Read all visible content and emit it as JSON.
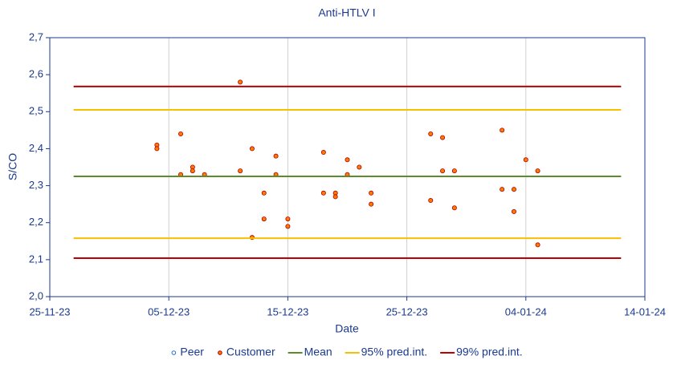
{
  "chart_data": {
    "type": "scatter",
    "title": "Anti-HTLV I",
    "xlabel": "Date",
    "ylabel": "S/CO",
    "xlim": [
      "2023-11-25",
      "2024-01-14"
    ],
    "xticks": [
      {
        "value": "2023-11-25",
        "label": "25-11-23"
      },
      {
        "value": "2023-12-05",
        "label": "05-12-23"
      },
      {
        "value": "2023-12-15",
        "label": "15-12-23"
      },
      {
        "value": "2023-12-25",
        "label": "25-12-23"
      },
      {
        "value": "2024-01-04",
        "label": "04-01-24"
      },
      {
        "value": "2024-01-14",
        "label": "14-01-24"
      }
    ],
    "ylim": [
      2.0,
      2.7
    ],
    "yticks": [
      {
        "value": 2.0,
        "label": "2,0"
      },
      {
        "value": 2.1,
        "label": "2,1"
      },
      {
        "value": 2.2,
        "label": "2,2"
      },
      {
        "value": 2.3,
        "label": "2,3"
      },
      {
        "value": 2.4,
        "label": "2,4"
      },
      {
        "value": 2.5,
        "label": "2,5"
      },
      {
        "value": 2.6,
        "label": "2,6"
      },
      {
        "value": 2.7,
        "label": "2,7"
      }
    ],
    "xgrid": true,
    "legend": "bottom",
    "series": [
      {
        "name": "Peer",
        "type": "scatter",
        "color": "#2a6fc9",
        "x": [],
        "values": []
      },
      {
        "name": "Customer",
        "type": "scatter",
        "color": "#ff7a00",
        "edgecolor": "#b00000",
        "x": [
          "2023-12-04",
          "2023-12-04",
          "2023-12-06",
          "2023-12-06",
          "2023-12-07",
          "2023-12-07",
          "2023-12-08",
          "2023-12-11",
          "2023-12-11",
          "2023-12-12",
          "2023-12-12",
          "2023-12-13",
          "2023-12-13",
          "2023-12-14",
          "2023-12-14",
          "2023-12-15",
          "2023-12-15",
          "2023-12-18",
          "2023-12-18",
          "2023-12-19",
          "2023-12-19",
          "2023-12-20",
          "2023-12-20",
          "2023-12-21",
          "2023-12-22",
          "2023-12-22",
          "2023-12-27",
          "2023-12-27",
          "2023-12-28",
          "2023-12-28",
          "2023-12-29",
          "2023-12-29",
          "2024-01-02",
          "2024-01-02",
          "2024-01-03",
          "2024-01-03",
          "2024-01-04",
          "2024-01-05",
          "2024-01-05"
        ],
        "values": [
          2.41,
          2.4,
          2.44,
          2.33,
          2.35,
          2.34,
          2.33,
          2.58,
          2.34,
          2.4,
          2.16,
          2.28,
          2.21,
          2.38,
          2.33,
          2.21,
          2.19,
          2.39,
          2.28,
          2.28,
          2.27,
          2.37,
          2.33,
          2.35,
          2.28,
          2.25,
          2.44,
          2.26,
          2.43,
          2.34,
          2.34,
          2.24,
          2.45,
          2.29,
          2.29,
          2.23,
          2.37,
          2.34,
          2.14
        ]
      },
      {
        "name": "Mean",
        "type": "line",
        "color": "#5b8c2a",
        "x": [
          "2023-11-27",
          "2024-01-12"
        ],
        "values": [
          2.325,
          2.325
        ]
      },
      {
        "name": "95% pred.int.",
        "type": "line",
        "color": "#f5c000",
        "x": [
          "2023-11-27",
          "2024-01-12",
          null,
          "2023-11-27",
          "2024-01-12"
        ],
        "values": [
          2.505,
          2.505,
          null,
          2.158,
          2.158
        ]
      },
      {
        "name": "99% pred.int.",
        "type": "line",
        "color": "#c00000",
        "x": [
          "2023-11-27",
          "2024-01-12",
          null,
          "2023-11-27",
          "2024-01-12"
        ],
        "values": [
          2.568,
          2.568,
          null,
          2.104,
          2.104
        ]
      }
    ]
  }
}
